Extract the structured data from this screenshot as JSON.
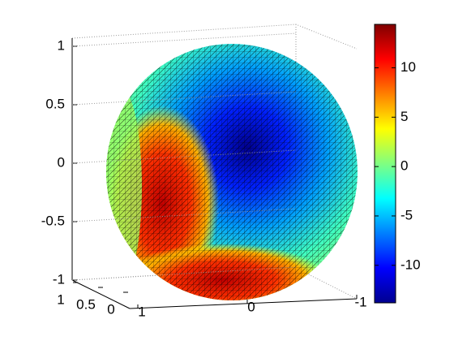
{
  "chart_data": {
    "type": "surface3d",
    "colormap": "jet",
    "zlim": [
      -1,
      1
    ],
    "zticks": [
      -1,
      -0.5,
      0,
      0.5,
      1
    ],
    "xlim": [
      1,
      -1
    ],
    "xticks": [
      1,
      0,
      -1
    ],
    "ylim": [
      1,
      0
    ],
    "yticks": [
      1,
      0.5,
      0
    ],
    "clim": [
      -13.8,
      14.4
    ],
    "cticks": [
      -10,
      -5,
      0,
      5,
      10
    ],
    "grid": true
  }
}
